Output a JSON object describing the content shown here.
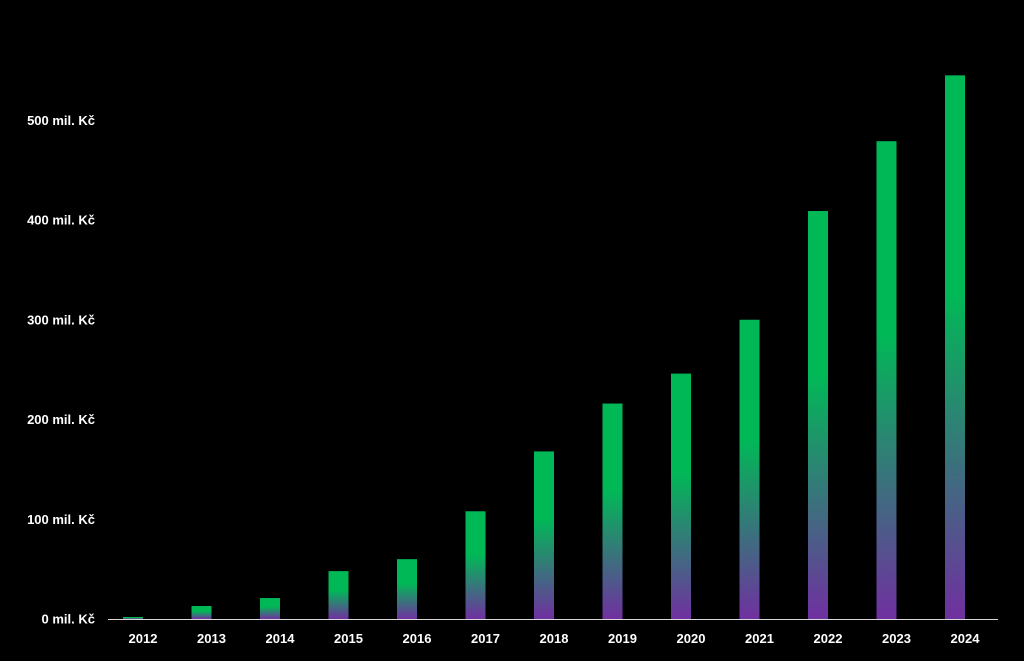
{
  "colors": {
    "background": "#000000",
    "bar_top": "#00b956",
    "bar_bottom": "#7030a0",
    "axis_line": "#d9d9d9",
    "text": "#ffffff"
  },
  "chart_data": {
    "type": "bar",
    "title": "",
    "xlabel": "",
    "ylabel": "",
    "categories": [
      "2012",
      "2013",
      "2014",
      "2015",
      "2016",
      "2017",
      "2018",
      "2019",
      "2020",
      "2021",
      "2022",
      "2023",
      "2024"
    ],
    "values": [
      2,
      13,
      21,
      48,
      60,
      108,
      168,
      216,
      246,
      300,
      409,
      479,
      545
    ],
    "ylim": [
      0,
      600
    ],
    "yticks": [
      0,
      100,
      200,
      300,
      400,
      500
    ],
    "ytick_labels": [
      "0 mil. Kč",
      "100 mil. Kč",
      "200 mil. Kč",
      "300 mil. Kč",
      "400 mil. Kč",
      "500 mil. Kč"
    ],
    "grid": false,
    "legend": "none"
  }
}
